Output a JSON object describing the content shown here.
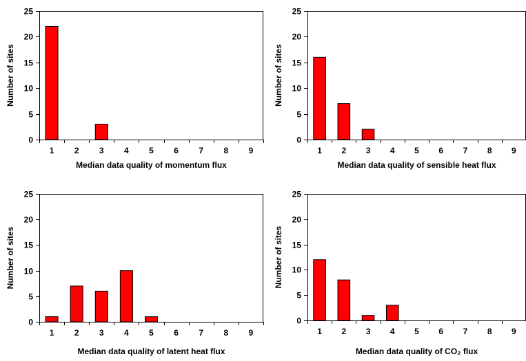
{
  "chart_data": [
    {
      "type": "bar",
      "categories": [
        "1",
        "2",
        "3",
        "4",
        "5",
        "6",
        "7",
        "8",
        "9"
      ],
      "values": [
        22,
        0,
        3,
        0,
        0,
        0,
        0,
        0,
        0
      ],
      "xlabel": "Median data quality of momentum flux",
      "ylabel": "Number of sites",
      "ylim": [
        0,
        25
      ],
      "yticks": [
        "0",
        "5",
        "10",
        "15",
        "20",
        "25"
      ],
      "grid": false,
      "legend": "none",
      "bar_color": "#ff0000"
    },
    {
      "type": "bar",
      "categories": [
        "1",
        "2",
        "3",
        "4",
        "5",
        "6",
        "7",
        "8",
        "9"
      ],
      "values": [
        16,
        7,
        2,
        0,
        0,
        0,
        0,
        0,
        0
      ],
      "xlabel": "Median data quality of sensible heat flux",
      "ylabel": "Number of sites",
      "ylim": [
        0,
        25
      ],
      "yticks": [
        "0",
        "5",
        "10",
        "15",
        "20",
        "25"
      ],
      "grid": false,
      "legend": "none",
      "bar_color": "#ff0000"
    },
    {
      "type": "bar",
      "categories": [
        "1",
        "2",
        "3",
        "4",
        "5",
        "6",
        "7",
        "8",
        "9"
      ],
      "values": [
        1,
        7,
        6,
        10,
        1,
        0,
        0,
        0,
        0
      ],
      "xlabel": "Median data quality of latent heat flux",
      "ylabel": "Number of sites",
      "ylim": [
        0,
        25
      ],
      "yticks": [
        "0",
        "5",
        "10",
        "15",
        "20",
        "25"
      ],
      "grid": false,
      "legend": "none",
      "bar_color": "#ff0000"
    },
    {
      "type": "bar",
      "categories": [
        "1",
        "2",
        "3",
        "4",
        "5",
        "6",
        "7",
        "8",
        "9"
      ],
      "values": [
        12,
        8,
        1,
        3,
        0,
        0,
        0,
        0,
        0
      ],
      "xlabel": "Median data quality of CO₂ flux",
      "ylabel": "Number of sites",
      "ylim": [
        0,
        25
      ],
      "yticks": [
        "0",
        "5",
        "10",
        "15",
        "20",
        "25"
      ],
      "grid": false,
      "legend": "none",
      "bar_color": "#ff0000"
    }
  ]
}
